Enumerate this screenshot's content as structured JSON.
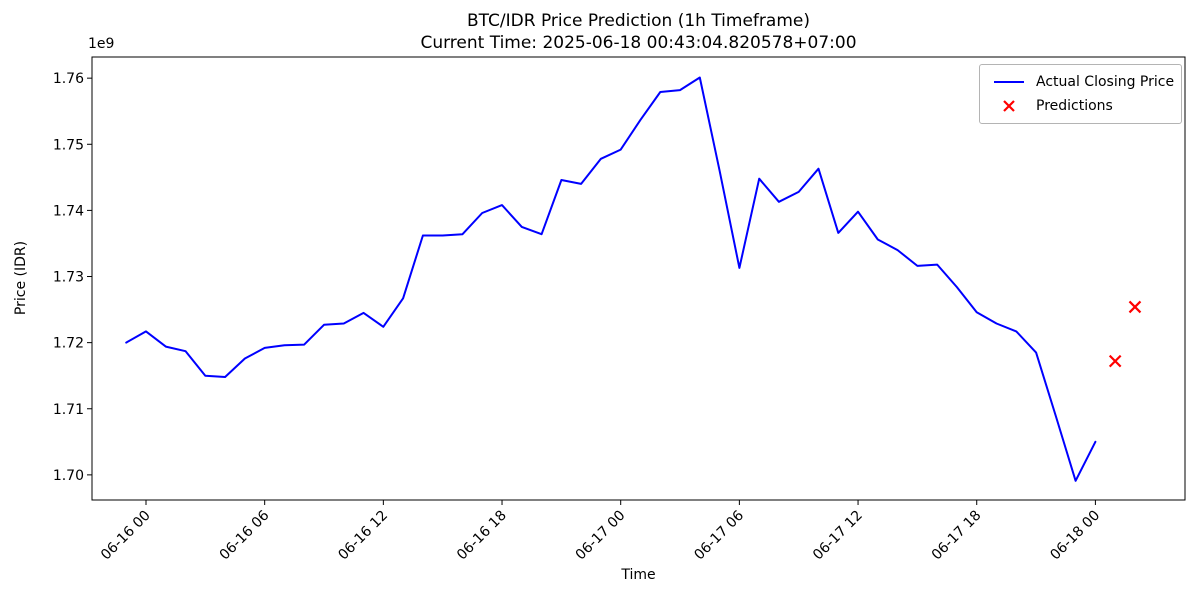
{
  "chart": {
    "title": "BTC/IDR Price Prediction (1h Timeframe)",
    "subtitle": "Current Time: 2025-06-18 00:43:04.820578+07:00",
    "xlabel": "Time",
    "ylabel": "Price (IDR)",
    "y_offset_label": "1e9",
    "legend": [
      {
        "label": "Actual Closing Price",
        "color": "#0000ff",
        "marker": "line"
      },
      {
        "label": "Predictions",
        "color": "#ff0000",
        "marker": "x"
      }
    ]
  },
  "chart_data": {
    "type": "line",
    "title": "BTC/IDR Price Prediction (1h Timeframe)",
    "subtitle": "Current Time: 2025-06-18 00:43:04.820578+07:00",
    "xlabel": "Time",
    "ylabel": "Price (IDR)",
    "y_unit_multiplier": 1000000000.0,
    "grid": false,
    "legend_position": "upper right",
    "x_tick_labels": [
      "06-16 00",
      "06-16 06",
      "06-16 12",
      "06-16 18",
      "06-17 00",
      "06-17 06",
      "06-17 12",
      "06-17 18",
      "06-18 00"
    ],
    "y_tick_labels": [
      "1.70",
      "1.71",
      "1.72",
      "1.73",
      "1.74",
      "1.75",
      "1.76"
    ],
    "y_ticks": [
      1.7,
      1.71,
      1.72,
      1.73,
      1.74,
      1.75,
      1.76
    ],
    "ylim": [
      1.6962,
      1.7632
    ],
    "xlim_hours_from_first_point": [
      -1.73,
      53.53
    ],
    "series": [
      {
        "name": "Actual Closing Price",
        "type": "line",
        "color": "#0000ff",
        "x": [
          "06-15 23:00",
          "06-16 00:00",
          "06-16 01:00",
          "06-16 02:00",
          "06-16 03:00",
          "06-16 04:00",
          "06-16 05:00",
          "06-16 06:00",
          "06-16 07:00",
          "06-16 08:00",
          "06-16 09:00",
          "06-16 10:00",
          "06-16 11:00",
          "06-16 12:00",
          "06-16 13:00",
          "06-16 14:00",
          "06-16 15:00",
          "06-16 16:00",
          "06-16 17:00",
          "06-16 18:00",
          "06-16 19:00",
          "06-16 20:00",
          "06-16 21:00",
          "06-16 22:00",
          "06-16 23:00",
          "06-17 00:00",
          "06-17 01:00",
          "06-17 02:00",
          "06-17 03:00",
          "06-17 04:00",
          "06-17 05:00",
          "06-17 06:00",
          "06-17 07:00",
          "06-17 08:00",
          "06-17 09:00",
          "06-17 10:00",
          "06-17 11:00",
          "06-17 12:00",
          "06-17 13:00",
          "06-17 14:00",
          "06-17 15:00",
          "06-17 16:00",
          "06-17 17:00",
          "06-17 18:00",
          "06-17 19:00",
          "06-17 20:00",
          "06-17 21:00",
          "06-17 22:00",
          "06-17 23:00",
          "06-18 00:00"
        ],
        "y": [
          1.72,
          1.7217,
          1.7194,
          1.7187,
          1.715,
          1.7148,
          1.7176,
          1.7192,
          1.7196,
          1.7197,
          1.7227,
          1.7229,
          1.7245,
          1.7224,
          1.7267,
          1.7362,
          1.7362,
          1.7364,
          1.7396,
          1.7408,
          1.7375,
          1.7364,
          1.7446,
          1.744,
          1.7478,
          1.7492,
          1.7537,
          1.7579,
          1.7582,
          1.7601,
          1.746,
          1.7313,
          1.7448,
          1.7413,
          1.7428,
          1.7463,
          1.7366,
          1.7398,
          1.7356,
          1.734,
          1.7316,
          1.7318,
          1.7284,
          1.7246,
          1.7229,
          1.7217,
          1.7185,
          1.7089,
          1.6991,
          1.705
        ]
      },
      {
        "name": "Predictions",
        "type": "scatter",
        "marker": "x",
        "color": "#ff0000",
        "x": [
          "06-18 01:00",
          "06-18 02:00"
        ],
        "y": [
          1.7172,
          1.7254
        ]
      }
    ]
  }
}
